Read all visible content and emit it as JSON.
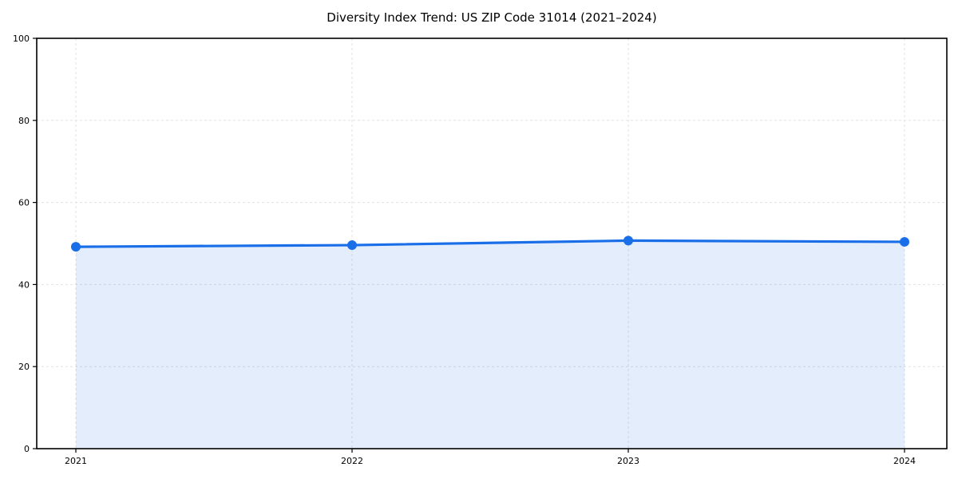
{
  "chart_data": {
    "type": "line",
    "title": "Diversity Index Trend: US ZIP Code 31014 (2021–2024)",
    "categories": [
      "2021",
      "2022",
      "2023",
      "2024"
    ],
    "series": [
      {
        "name": "Diversity Index",
        "values": [
          49.2,
          49.6,
          50.7,
          50.4
        ]
      }
    ],
    "xlabel": "",
    "ylabel": "",
    "ylim": [
      0,
      100
    ],
    "yticks": [
      0,
      20,
      40,
      60,
      80,
      100
    ],
    "grid": true,
    "grid_style": "dashed",
    "legend_position": "none",
    "area_fill": true,
    "marker": "circle",
    "colors": {
      "line": "#1a6fe8",
      "marker": "#1a6fe8",
      "fill": "rgba(26,111,232,0.12)",
      "grid": "#e2e2e2",
      "spine": "#000000",
      "tick_label": "#000000",
      "title": "#000000",
      "background": "#ffffff"
    }
  }
}
